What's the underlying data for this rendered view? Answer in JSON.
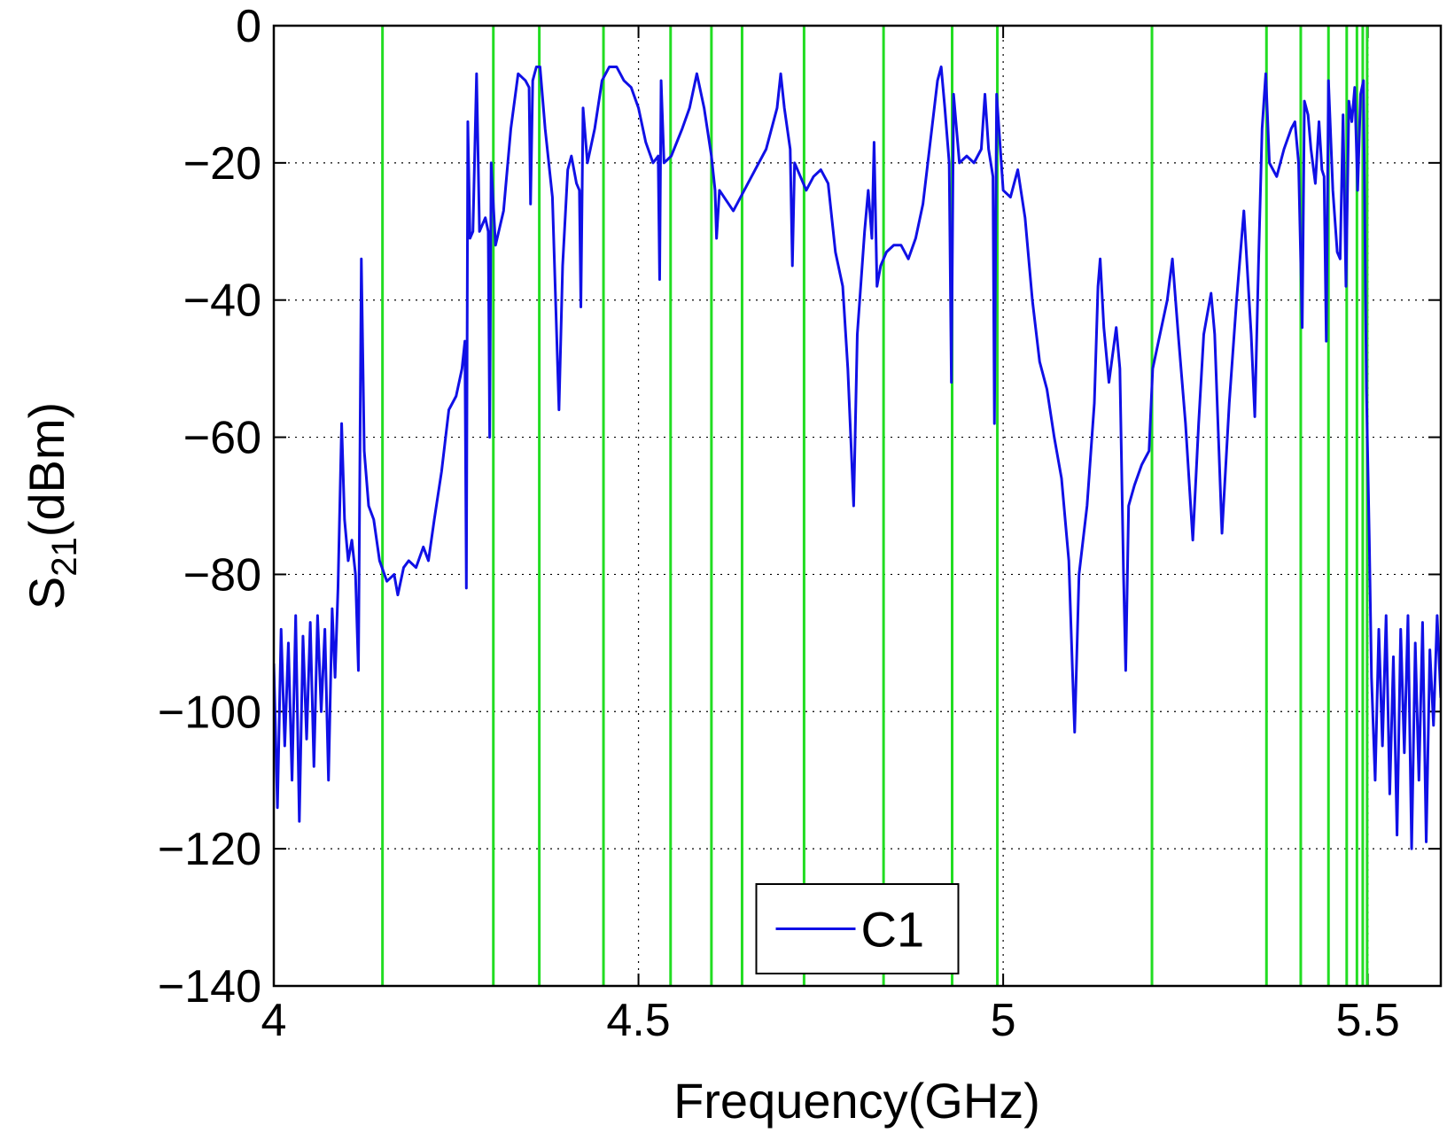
{
  "chart_data": {
    "type": "line",
    "xlabel": "Frequency(GHz)",
    "ylabel": {
      "base": "S",
      "subscript": "21",
      "unit": "(dBm)"
    },
    "xlim": [
      4,
      5.6
    ],
    "ylim": [
      -140,
      0
    ],
    "xticks": [
      4,
      4.5,
      5,
      5.5
    ],
    "yticks": [
      {
        "value": -140,
        "label": "−140"
      },
      {
        "value": -120,
        "label": "−120"
      },
      {
        "value": -100,
        "label": "−100"
      },
      {
        "value": -80,
        "label": "−80"
      },
      {
        "value": -60,
        "label": "−60"
      },
      {
        "value": -40,
        "label": "−40"
      },
      {
        "value": -20,
        "label": "−20"
      },
      0
    ],
    "grid": true,
    "legend": "lower center",
    "x": [
      4.0,
      4.005,
      4.01,
      4.015,
      4.02,
      4.025,
      4.03,
      4.035,
      4.04,
      4.045,
      4.05,
      4.055,
      4.06,
      4.065,
      4.07,
      4.075,
      4.08,
      4.084,
      4.088,
      4.093,
      4.097,
      4.102,
      4.107,
      4.112,
      4.116,
      4.12,
      4.124,
      4.13,
      4.137,
      4.145,
      4.155,
      4.165,
      4.17,
      4.178,
      4.185,
      4.195,
      4.205,
      4.212,
      4.22,
      4.23,
      4.24,
      4.25,
      4.258,
      4.262,
      4.264,
      4.266,
      4.269,
      4.273,
      4.278,
      4.282,
      4.29,
      4.294,
      4.296,
      4.298,
      4.304,
      4.315,
      4.325,
      4.335,
      4.345,
      4.35,
      4.352,
      4.355,
      4.36,
      4.365,
      4.372,
      4.382,
      4.391,
      4.396,
      4.403,
      4.408,
      4.415,
      4.419,
      4.421,
      4.424,
      4.43,
      4.44,
      4.45,
      4.46,
      4.47,
      4.48,
      4.49,
      4.5,
      4.51,
      4.52,
      4.527,
      4.529,
      4.531,
      4.535,
      4.545,
      4.56,
      4.57,
      4.58,
      4.59,
      4.6,
      4.605,
      4.607,
      4.611,
      4.63,
      4.64,
      4.65,
      4.66,
      4.675,
      4.69,
      4.695,
      4.7,
      4.708,
      4.711,
      4.714,
      4.722,
      4.73,
      4.74,
      4.75,
      4.76,
      4.77,
      4.78,
      4.787,
      4.795,
      4.8,
      4.81,
      4.815,
      4.82,
      4.823,
      4.827,
      4.832,
      4.84,
      4.85,
      4.86,
      4.87,
      4.88,
      4.89,
      4.9,
      4.91,
      4.915,
      4.92,
      4.926,
      4.929,
      4.932,
      4.94,
      4.95,
      4.96,
      4.97,
      4.975,
      4.98,
      4.986,
      4.988,
      4.991,
      5.0,
      5.01,
      5.02,
      5.03,
      5.04,
      5.05,
      5.06,
      5.07,
      5.08,
      5.09,
      5.095,
      5.098,
      5.104,
      5.115,
      5.125,
      5.13,
      5.133,
      5.138,
      5.145,
      5.15,
      5.155,
      5.16,
      5.165,
      5.168,
      5.172,
      5.18,
      5.19,
      5.2,
      5.205,
      5.215,
      5.225,
      5.232,
      5.24,
      5.25,
      5.26,
      5.268,
      5.275,
      5.285,
      5.29,
      5.3,
      5.31,
      5.32,
      5.33,
      5.34,
      5.345,
      5.35,
      5.355,
      5.36,
      5.365,
      5.375,
      5.385,
      5.395,
      5.4,
      5.405,
      5.41,
      5.413,
      5.418,
      5.422,
      5.428,
      5.433,
      5.437,
      5.44,
      5.443,
      5.446,
      5.452,
      5.458,
      5.462,
      5.466,
      5.47,
      5.474,
      5.478,
      5.482,
      5.486,
      5.49,
      5.494,
      5.498,
      5.502,
      5.505,
      5.51,
      5.515,
      5.52,
      5.525,
      5.53,
      5.535,
      5.54,
      5.545,
      5.55,
      5.555,
      5.56,
      5.565,
      5.57,
      5.575,
      5.58,
      5.585,
      5.59,
      5.595,
      5.6
    ],
    "series": [
      {
        "name": "C1",
        "color": "#1010e6",
        "values": [
          -93,
          -114,
          -88,
          -105,
          -90,
          -110,
          -86,
          -116,
          -89,
          -104,
          -87,
          -108,
          -86,
          -100,
          -88,
          -110,
          -85,
          -95,
          -82,
          -58,
          -72,
          -78,
          -75,
          -80,
          -94,
          -34,
          -62,
          -70,
          -72,
          -78,
          -81,
          -80,
          -83,
          -79,
          -78,
          -79,
          -76,
          -78,
          -72,
          -65,
          -56,
          -54,
          -50,
          -46,
          -82,
          -14,
          -31,
          -30,
          -7,
          -30,
          -28,
          -30,
          -60,
          -20,
          -32,
          -27,
          -15,
          -7,
          -8,
          -9,
          -26,
          -8,
          -6,
          -6,
          -15,
          -25,
          -56,
          -35,
          -21,
          -19,
          -23,
          -24,
          -41,
          -12,
          -20,
          -15,
          -8,
          -6,
          -6,
          -8,
          -9,
          -12,
          -17,
          -20,
          -19,
          -37,
          -8,
          -20,
          -19,
          -15,
          -12,
          -7,
          -12,
          -19,
          -24,
          -31,
          -24,
          -27,
          -25,
          -23,
          -21,
          -18,
          -12,
          -7,
          -12,
          -18,
          -35,
          -20,
          -22,
          -24,
          -22,
          -21,
          -23,
          -33,
          -38,
          -50,
          -70,
          -45,
          -30,
          -24,
          -31,
          -17,
          -38,
          -35,
          -33,
          -32,
          -32,
          -34,
          -31,
          -26,
          -17,
          -8,
          -6,
          -12,
          -20,
          -52,
          -10,
          -20,
          -19,
          -20,
          -18,
          -10,
          -18,
          -22,
          -58,
          -10,
          -24,
          -25,
          -21,
          -28,
          -40,
          -49,
          -53,
          -60,
          -66,
          -78,
          -94,
          -103,
          -80,
          -70,
          -55,
          -38,
          -34,
          -44,
          -52,
          -48,
          -44,
          -50,
          -80,
          -94,
          -70,
          -67,
          -64,
          -62,
          -50,
          -45,
          -40,
          -34,
          -45,
          -58,
          -75,
          -58,
          -45,
          -39,
          -45,
          -74,
          -55,
          -40,
          -27,
          -45,
          -57,
          -35,
          -15,
          -7,
          -20,
          -22,
          -18,
          -15,
          -14,
          -20,
          -44,
          -11,
          -13,
          -18,
          -23,
          -14,
          -21,
          -22,
          -46,
          -8,
          -24,
          -33,
          -34,
          -13,
          -38,
          -11,
          -14,
          -9,
          -24,
          -10,
          -8,
          -53,
          -75,
          -95,
          -110,
          -88,
          -105,
          -86,
          -112,
          -92,
          -118,
          -88,
          -106,
          -86,
          -120,
          -90,
          -110,
          -87,
          -119,
          -91,
          -102,
          -86,
          -98
        ]
      }
    ],
    "vlines": {
      "color": "#22dd22",
      "x": [
        4.149,
        4.301,
        4.364,
        4.452,
        4.544,
        4.6,
        4.642,
        4.727,
        4.836,
        4.93,
        4.992,
        5.204,
        5.361,
        5.408,
        5.446,
        5.471,
        5.485,
        5.493,
        5.499
      ]
    }
  }
}
